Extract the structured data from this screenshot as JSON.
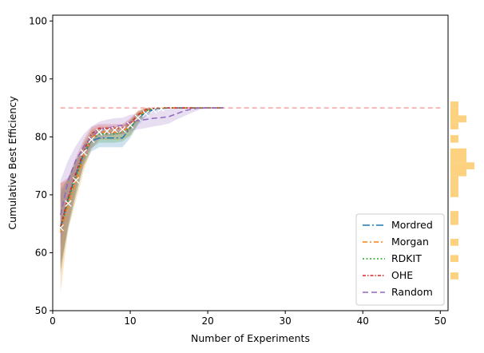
{
  "chart_data": {
    "type": "line",
    "xlabel": "Number of Experiments",
    "ylabel": "Cumulative Best Efficiency",
    "xlim": [
      0,
      51
    ],
    "ylim": [
      50,
      101
    ],
    "xticks": [
      "0",
      "10",
      "20",
      "30",
      "40",
      "50"
    ],
    "yticks": [
      "50",
      "60",
      "70",
      "80",
      "90",
      "100"
    ],
    "reference_line": {
      "y": 85,
      "color": "#f4a3a3",
      "style": "dashed"
    },
    "legend_position": "lower right",
    "series": [
      {
        "name": "Mordred",
        "color": "#1f77b4",
        "style": "dashdot-long",
        "x": [
          1,
          2,
          3,
          4,
          5,
          6,
          7,
          8,
          9,
          10,
          11,
          12,
          13,
          14,
          15,
          16,
          17,
          18,
          19,
          20,
          21,
          22
        ],
        "y": [
          64.3,
          69.5,
          73.5,
          77.0,
          79.3,
          79.8,
          79.8,
          79.8,
          79.8,
          81.5,
          83.3,
          84.2,
          84.7,
          84.9,
          85,
          85,
          85,
          85,
          85,
          85,
          85,
          85
        ],
        "lower": [
          58,
          64,
          70,
          75,
          77.5,
          78.2,
          78.2,
          78.2,
          78.2,
          79.8,
          82,
          83.5,
          84.3,
          84.7,
          84.9,
          85,
          85,
          85,
          85,
          85,
          85,
          85
        ],
        "upper": [
          70,
          73,
          76,
          78.5,
          80.3,
          81,
          81,
          81,
          81,
          82.8,
          84.2,
          84.8,
          85,
          85,
          85,
          85,
          85,
          85,
          85,
          85,
          85,
          85
        ]
      },
      {
        "name": "Morgan",
        "color": "#ff7f0e",
        "style": "dashdot",
        "x": [
          1,
          2,
          3,
          4,
          5,
          6,
          7,
          8,
          9,
          10,
          11,
          12,
          13,
          14,
          15,
          16,
          17,
          18,
          19,
          20,
          21,
          22
        ],
        "y": [
          63.5,
          68.5,
          72.3,
          76.5,
          79.8,
          80.8,
          80.8,
          80.8,
          81.0,
          81.8,
          83.5,
          84.6,
          84.9,
          85,
          85,
          85,
          85,
          85,
          85,
          85,
          85,
          85
        ],
        "lower": [
          53,
          64,
          69,
          74,
          78,
          79.5,
          79.5,
          79.5,
          79.5,
          80.3,
          82.3,
          84,
          84.6,
          84.9,
          85,
          85,
          85,
          85,
          85,
          85,
          85,
          85
        ],
        "upper": [
          72,
          72.5,
          75.5,
          79,
          81.3,
          81.8,
          81.8,
          81.8,
          82,
          83,
          84.5,
          85,
          85,
          85,
          85,
          85,
          85,
          85,
          85,
          85,
          85,
          85
        ]
      },
      {
        "name": "RDKIT",
        "color": "#2ca02c",
        "style": "dotted",
        "x": [
          1,
          2,
          3,
          4,
          5,
          6,
          7,
          8,
          9,
          10,
          11,
          12,
          13,
          14,
          15,
          16,
          17,
          18,
          19,
          20,
          21,
          22
        ],
        "y": [
          64.0,
          69.0,
          73.0,
          77.0,
          79.5,
          80.5,
          80.5,
          80.5,
          80.8,
          81.5,
          83.3,
          84.5,
          84.9,
          85,
          85,
          85,
          85,
          85,
          85,
          85,
          85,
          85
        ],
        "lower": [
          56,
          64.5,
          70,
          75,
          78,
          79,
          79,
          79,
          79.2,
          80.2,
          82.2,
          83.8,
          84.6,
          84.9,
          85,
          85,
          85,
          85,
          85,
          85,
          85,
          85
        ],
        "upper": [
          71,
          72.8,
          75.8,
          78.8,
          81,
          81.5,
          81.5,
          81.5,
          81.8,
          82.8,
          84.3,
          85,
          85,
          85,
          85,
          85,
          85,
          85,
          85,
          85,
          85,
          85
        ]
      },
      {
        "name": "OHE",
        "color": "#d62728",
        "style": "dashdot-dense",
        "x": [
          1,
          2,
          3,
          4,
          5,
          6,
          7,
          8,
          9,
          10,
          11,
          12,
          13,
          14,
          15,
          16,
          17,
          18,
          19,
          20,
          21,
          22
        ],
        "y": [
          64.5,
          69.5,
          73.8,
          77.5,
          80.5,
          81.5,
          81.5,
          81.5,
          81.5,
          82.3,
          83.8,
          84.7,
          84.9,
          85,
          85,
          85,
          85,
          85,
          85,
          85,
          85,
          85
        ],
        "lower": [
          57,
          65,
          71,
          75.5,
          79,
          80.5,
          80.5,
          80.5,
          80.5,
          81.3,
          83,
          84.2,
          84.7,
          84.9,
          85,
          85,
          85,
          85,
          85,
          85,
          85,
          85
        ],
        "upper": [
          72,
          73,
          76.5,
          79.5,
          81.7,
          82.2,
          82.2,
          82.2,
          82.2,
          83.2,
          84.5,
          85,
          85,
          85,
          85,
          85,
          85,
          85,
          85,
          85,
          85,
          85
        ]
      },
      {
        "name": "Random",
        "color": "#9467bd",
        "style": "long-dash",
        "x": [
          1,
          2,
          3,
          4,
          5,
          6,
          7,
          8,
          9,
          10,
          11,
          12,
          13,
          14,
          15,
          16,
          17,
          18,
          19,
          20,
          21,
          22
        ],
        "y": [
          66.5,
          72.5,
          76.0,
          78.3,
          80.0,
          81.2,
          81.5,
          81.8,
          82.0,
          82.5,
          82.8,
          83.0,
          83.2,
          83.3,
          83.5,
          84.0,
          84.5,
          84.8,
          85,
          85,
          85,
          85
        ],
        "lower": [
          61,
          69,
          73,
          76,
          78,
          79.5,
          80,
          80.3,
          80.5,
          81,
          81.3,
          81.5,
          81.8,
          82,
          82.3,
          83,
          83.6,
          84.2,
          84.7,
          84.9,
          85,
          85
        ],
        "upper": [
          72.5,
          76,
          78.5,
          80.5,
          81.8,
          82.6,
          83,
          83.2,
          83.3,
          83.8,
          84,
          84.2,
          84.4,
          84.6,
          84.8,
          85,
          85,
          85,
          85,
          85,
          85,
          85
        ]
      }
    ],
    "markers": {
      "symbol": "x",
      "color": "#ffffff",
      "points": [
        [
          1,
          64.3
        ],
        [
          2,
          68.5
        ],
        [
          3,
          72.5
        ],
        [
          4,
          77.3
        ],
        [
          5,
          79.5
        ],
        [
          6,
          80.8
        ],
        [
          7,
          81.0
        ],
        [
          8,
          81.2
        ],
        [
          9,
          81.3
        ],
        [
          10,
          82.0
        ],
        [
          11,
          83.3
        ],
        [
          12,
          84.0
        ],
        [
          13,
          84.6
        ],
        [
          14,
          84.9
        ]
      ]
    },
    "marginal_histogram": {
      "color": "#fcd17f",
      "side": "right",
      "bins": [
        {
          "lo": 84.9,
          "hi": 86.1,
          "count": 1
        },
        {
          "lo": 83.7,
          "hi": 84.9,
          "count": 1
        },
        {
          "lo": 82.5,
          "hi": 83.7,
          "count": 2
        },
        {
          "lo": 81.3,
          "hi": 82.5,
          "count": 1
        },
        {
          "lo": 79.0,
          "hi": 80.3,
          "count": 1
        },
        {
          "lo": 76.8,
          "hi": 78.0,
          "count": 2
        },
        {
          "lo": 75.6,
          "hi": 76.8,
          "count": 2
        },
        {
          "lo": 74.4,
          "hi": 75.6,
          "count": 3
        },
        {
          "lo": 73.2,
          "hi": 74.4,
          "count": 2
        },
        {
          "lo": 72.0,
          "hi": 73.2,
          "count": 1
        },
        {
          "lo": 70.8,
          "hi": 72.0,
          "count": 1
        },
        {
          "lo": 69.6,
          "hi": 70.8,
          "count": 1
        },
        {
          "lo": 66.0,
          "hi": 67.2,
          "count": 1
        },
        {
          "lo": 64.8,
          "hi": 66.0,
          "count": 1
        },
        {
          "lo": 61.2,
          "hi": 62.4,
          "count": 1
        },
        {
          "lo": 58.4,
          "hi": 59.6,
          "count": 1
        },
        {
          "lo": 55.4,
          "hi": 56.6,
          "count": 1
        }
      ]
    }
  }
}
